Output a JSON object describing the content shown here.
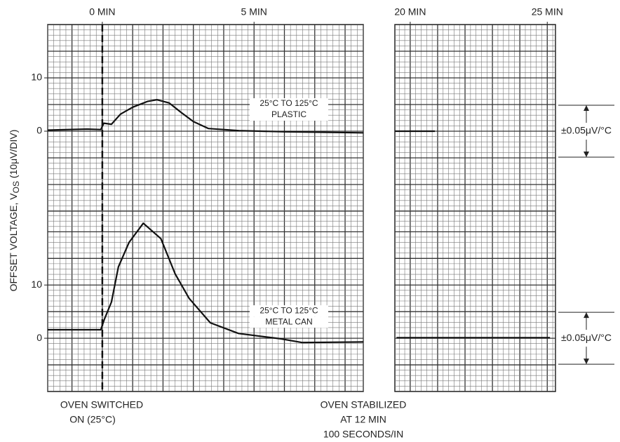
{
  "chart_data": {
    "type": "line",
    "ylabel": [
      "OFFSET VOLTAGE, V",
      "OS",
      " (10μV/DIV)"
    ],
    "grid": true,
    "panels": [
      {
        "xlim": [
          -1.8,
          8.6
        ],
        "xticks": [
          {
            "value": 0,
            "label": "0 MIN"
          },
          {
            "value": 5,
            "label": "5 MIN"
          }
        ]
      },
      {
        "xlim": [
          19.44,
          25.3
        ],
        "xticks": [
          {
            "value": 20,
            "label": "20 MIN"
          },
          {
            "value": 25,
            "label": "25 MIN"
          }
        ]
      }
    ],
    "rows": [
      {
        "ylim": [
          -15,
          20
        ],
        "yticks": [
          0,
          10
        ],
        "annotation": "±0.05μV/°C"
      },
      {
        "ylim": [
          -10,
          24
        ],
        "yticks": [
          0,
          10
        ],
        "annotation": "±0.05μV/°C"
      }
    ],
    "series": [
      {
        "name": [
          "25°C TO 125°C",
          "PLASTIC"
        ],
        "row": 0,
        "color": "#111111",
        "segments": [
          {
            "panel": 0,
            "x": [
              -1.8,
              -0.5,
              -0.05,
              0.05,
              0.3,
              0.6,
              1.0,
              1.5,
              1.8,
              2.2,
              2.6,
              3.0,
              3.5,
              4.5,
              6.0,
              8.6
            ],
            "values": [
              0.2,
              0.4,
              0.3,
              1.5,
              1.3,
              3.2,
              4.5,
              5.6,
              5.9,
              5.3,
              3.5,
              1.8,
              0.5,
              0.1,
              -0.1,
              -0.3
            ]
          },
          {
            "panel": 1,
            "x": [
              19.45,
              20.9
            ],
            "values": [
              0,
              0
            ]
          }
        ]
      },
      {
        "name": [
          "25°C TO 125°C",
          "METAL CAN"
        ],
        "row": 1,
        "color": "#111111",
        "segments": [
          {
            "panel": 0,
            "x": [
              -1.8,
              -0.05,
              0.07,
              0.3,
              0.53,
              0.88,
              1.35,
              1.93,
              2.4,
              2.86,
              3.56,
              4.49,
              5.88,
              6.58,
              8.6
            ],
            "values": [
              1.6,
              1.6,
              3.6,
              6.8,
              13.4,
              18.0,
              21.6,
              18.7,
              12.1,
              7.5,
              2.9,
              0.9,
              -0.1,
              -0.8,
              -0.7
            ]
          },
          {
            "panel": 1,
            "x": [
              19.5,
              25.1
            ],
            "values": [
              0.1,
              0.1
            ]
          }
        ]
      }
    ],
    "notes": [
      [
        "OVEN SWITCHED",
        "ON (25°C)"
      ],
      [
        "OVEN STABILIZED",
        "AT 12 MIN",
        "100 SECONDS/IN"
      ]
    ]
  }
}
